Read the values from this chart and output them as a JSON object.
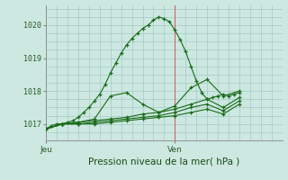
{
  "bg_color": "#cce8e0",
  "grid_color": "#aacfca",
  "line_color": "#1a6b1a",
  "marker": "+",
  "title": "Pression niveau de la mer( hPa )",
  "ylabel_ticks": [
    1017,
    1018,
    1019,
    1020
  ],
  "ylim": [
    1016.5,
    1020.6
  ],
  "xlim": [
    0,
    44
  ],
  "xtick_positions": [
    0,
    24
  ],
  "xtick_labels": [
    "Jeu",
    "Ven"
  ],
  "vline_x": 24,
  "series": [
    [
      0,
      1016.85,
      1,
      1016.95,
      2,
      1017.0,
      3,
      1017.0,
      4,
      1017.05,
      5,
      1017.1,
      6,
      1017.2,
      7,
      1017.35,
      8,
      1017.5,
      9,
      1017.7,
      10,
      1017.9,
      11,
      1018.2,
      12,
      1018.55,
      13,
      1018.85,
      14,
      1019.15,
      15,
      1019.4,
      16,
      1019.6,
      17,
      1019.75,
      18,
      1019.9,
      19,
      1020.0,
      20,
      1020.15,
      21,
      1020.25,
      22,
      1020.2,
      23,
      1020.1,
      24,
      1019.85,
      25,
      1019.55,
      26,
      1019.2,
      27,
      1018.75,
      28,
      1018.3,
      29,
      1017.95,
      30,
      1017.75,
      31,
      1017.8,
      32,
      1017.85,
      33,
      1017.9,
      34,
      1017.85,
      35,
      1017.9,
      36,
      1017.95
    ],
    [
      0,
      1016.85,
      3,
      1017.0,
      6,
      1017.05,
      9,
      1017.15,
      12,
      1017.85,
      15,
      1017.95,
      18,
      1017.6,
      21,
      1017.35,
      24,
      1017.55,
      27,
      1018.1,
      30,
      1018.35,
      33,
      1017.85,
      36,
      1018.0
    ],
    [
      0,
      1016.85,
      3,
      1017.0,
      6,
      1017.05,
      9,
      1017.1,
      12,
      1017.15,
      15,
      1017.2,
      18,
      1017.3,
      21,
      1017.35,
      24,
      1017.45,
      27,
      1017.6,
      30,
      1017.75,
      33,
      1017.5,
      36,
      1017.8
    ],
    [
      0,
      1016.85,
      3,
      1017.0,
      6,
      1017.0,
      9,
      1017.05,
      12,
      1017.1,
      15,
      1017.15,
      18,
      1017.2,
      21,
      1017.25,
      24,
      1017.35,
      27,
      1017.5,
      30,
      1017.6,
      33,
      1017.4,
      36,
      1017.7
    ],
    [
      0,
      1016.85,
      3,
      1017.0,
      6,
      1017.0,
      9,
      1017.0,
      12,
      1017.05,
      15,
      1017.1,
      18,
      1017.15,
      21,
      1017.2,
      24,
      1017.25,
      27,
      1017.35,
      30,
      1017.45,
      33,
      1017.3,
      36,
      1017.6
    ]
  ]
}
